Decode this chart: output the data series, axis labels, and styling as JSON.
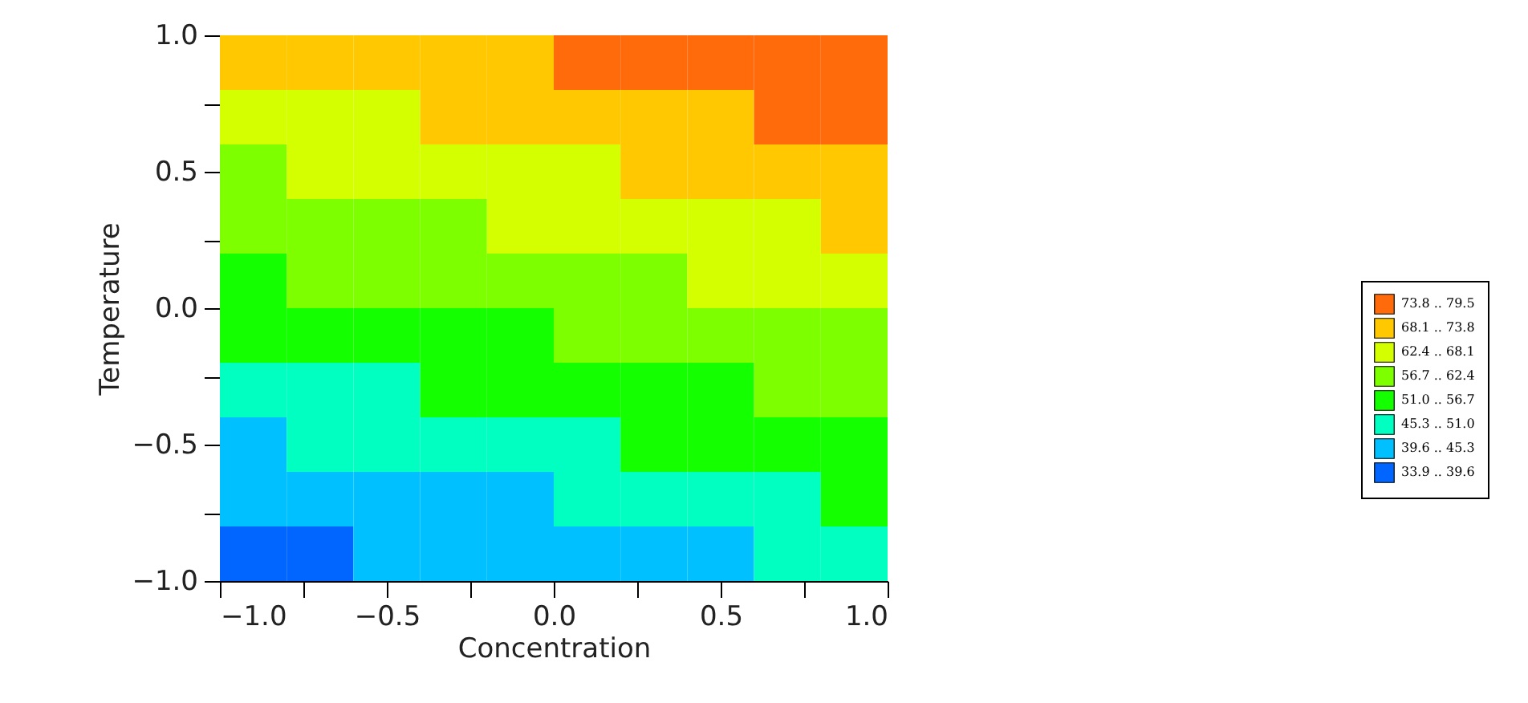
{
  "chart_data": {
    "type": "heatmap",
    "xlabel": "Concentration",
    "ylabel": "Temperature",
    "x": [
      -0.9,
      -0.7,
      -0.5,
      -0.3,
      -0.1,
      0.1,
      0.3,
      0.5,
      0.7,
      0.9
    ],
    "y": [
      0.9,
      0.7,
      0.5,
      0.3,
      0.1,
      -0.1,
      -0.3,
      -0.5,
      -0.7,
      -0.9
    ],
    "cells": [
      [
        70.95,
        70.95,
        70.95,
        70.95,
        70.95,
        76.65,
        76.65,
        76.65,
        76.65,
        76.65
      ],
      [
        65.25,
        65.25,
        65.25,
        70.95,
        70.95,
        70.95,
        70.95,
        70.95,
        76.65,
        76.65
      ],
      [
        59.55,
        65.25,
        65.25,
        65.25,
        65.25,
        65.25,
        70.95,
        70.95,
        70.95,
        70.95
      ],
      [
        59.55,
        59.55,
        59.55,
        59.55,
        65.25,
        65.25,
        65.25,
        65.25,
        65.25,
        70.95
      ],
      [
        53.85,
        59.55,
        59.55,
        59.55,
        59.55,
        59.55,
        59.55,
        65.25,
        65.25,
        65.25
      ],
      [
        53.85,
        53.85,
        53.85,
        53.85,
        53.85,
        59.55,
        59.55,
        59.55,
        59.55,
        59.55
      ],
      [
        48.15,
        48.15,
        48.15,
        53.85,
        53.85,
        53.85,
        53.85,
        53.85,
        59.55,
        59.55
      ],
      [
        42.45,
        48.15,
        48.15,
        48.15,
        48.15,
        48.15,
        53.85,
        53.85,
        53.85,
        53.85
      ],
      [
        42.45,
        42.45,
        42.45,
        42.45,
        42.45,
        48.15,
        48.15,
        48.15,
        48.15,
        53.85
      ],
      [
        36.75,
        36.75,
        42.45,
        42.45,
        42.45,
        42.45,
        42.45,
        42.45,
        48.15,
        48.15
      ]
    ],
    "cticks": [
      {
        "value": 79.5,
        "label": null
      },
      {
        "value": 73.8,
        "label": "73.8 .. 79.5"
      },
      {
        "value": 68.1,
        "label": "68.1 .. 73.8"
      },
      {
        "value": 62.4,
        "label": "62.4 .. 68.1"
      },
      {
        "value": 56.7,
        "label": "56.7 .. 62.4"
      },
      {
        "value": 51.0,
        "label": "51.0 .. 56.7"
      },
      {
        "value": 45.3,
        "label": "45.3 .. 51.0"
      },
      {
        "value": 39.6,
        "label": "39.6 .. 45.3"
      },
      {
        "value": 33.9,
        "label": "33.9 .. 39.6"
      }
    ],
    "colors": [
      "#ff6a0a",
      "#ffc800",
      "#d4ff00",
      "#7dff00",
      "#14ff00",
      "#00ffc0",
      "#00c0ff",
      "#0066ff"
    ],
    "xlim": [
      -1.0,
      1.0
    ],
    "ylim": [
      -1.0,
      1.0
    ],
    "xticks": [
      {
        "value": -1.0,
        "label": "−1.0"
      },
      {
        "value": -0.75,
        "label": null
      },
      {
        "value": -0.5,
        "label": "−0.5"
      },
      {
        "value": -0.25,
        "label": null
      },
      {
        "value": 0.0,
        "label": "0.0"
      },
      {
        "value": 0.25,
        "label": null
      },
      {
        "value": 0.5,
        "label": "0.5"
      },
      {
        "value": 0.75,
        "label": null
      },
      {
        "value": 1.0,
        "label": "1.0"
      }
    ],
    "yticks": [
      {
        "value": -1.0,
        "label": "−1.0"
      },
      {
        "value": -0.75,
        "label": null
      },
      {
        "value": -0.5,
        "label": "−0.5"
      },
      {
        "value": -0.25,
        "label": null
      },
      {
        "value": 0.0,
        "label": "0.0"
      },
      {
        "value": 0.25,
        "label": null
      },
      {
        "value": 0.5,
        "label": "0.5"
      },
      {
        "value": 0.75,
        "label": null
      },
      {
        "value": 1.0,
        "label": "1.0"
      }
    ],
    "grid": false
  }
}
